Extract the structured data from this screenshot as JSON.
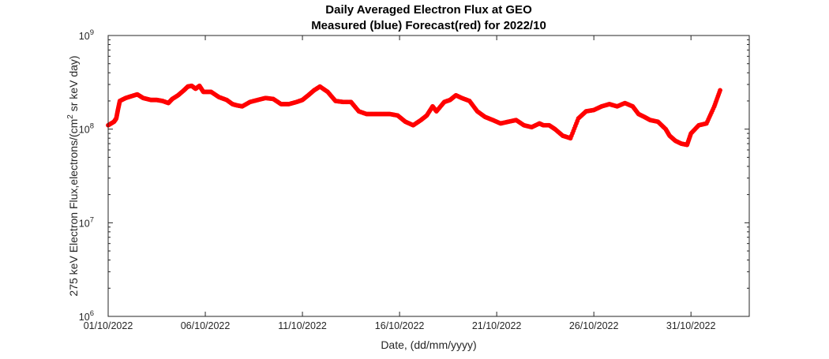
{
  "chart_data": {
    "type": "scatter",
    "title": "Daily Averaged Electron Flux at GEO",
    "subtitle": "Measured (blue) Forecast(red) for 2022/10",
    "xlabel": "Date, (dd/mm/yyyy)",
    "ylabel": {
      "prefix": "275 keV Electron Flux,electrons/(cm",
      "superscript": "2",
      "suffix": " sr keV day)"
    },
    "x_ticks": [
      "01/10/2022",
      "06/10/2022",
      "11/10/2022",
      "16/10/2022",
      "21/10/2022",
      "26/10/2022",
      "31/10/2022"
    ],
    "y_ticks": [
      {
        "base": "10",
        "exp": "6"
      },
      {
        "base": "10",
        "exp": "7"
      },
      {
        "base": "10",
        "exp": "8"
      },
      {
        "base": "10",
        "exp": "9"
      }
    ],
    "xlim": [
      "2022-10-01T00:00",
      "2022-11-03T00:00"
    ],
    "ylim": [
      1000000.0,
      1000000000.0
    ],
    "yscale": "log",
    "grid": false,
    "series": [
      {
        "color": "#ff0000",
        "x": [
          "2022-10-01T00:00",
          "2022-10-01T07:12",
          "2022-10-01T10:00",
          "2022-10-01T12:00",
          "2022-10-01T14:24",
          "2022-10-01T21:36",
          "2022-10-02T04:48",
          "2022-10-02T12:00",
          "2022-10-02T19:12",
          "2022-10-03T04:48",
          "2022-10-03T12:00",
          "2022-10-03T19:12",
          "2022-10-04T02:24",
          "2022-10-04T07:12",
          "2022-10-04T14:24",
          "2022-10-04T21:36",
          "2022-10-05T02:24",
          "2022-10-05T07:12",
          "2022-10-05T12:00",
          "2022-10-05T16:48",
          "2022-10-05T21:36",
          "2022-10-06T07:12",
          "2022-10-06T16:48",
          "2022-10-07T02:24",
          "2022-10-07T09:36",
          "2022-10-07T14:24",
          "2022-10-07T21:36",
          "2022-10-08T07:12",
          "2022-10-08T16:48",
          "2022-10-09T02:24",
          "2022-10-09T12:00",
          "2022-10-09T21:36",
          "2022-10-10T07:12",
          "2022-10-10T16:48",
          "2022-10-11T00:00",
          "2022-10-11T07:12",
          "2022-10-11T14:24",
          "2022-10-11T21:36",
          "2022-10-12T07:12",
          "2022-10-12T16:48",
          "2022-10-13T02:24",
          "2022-10-13T12:00",
          "2022-10-13T21:36",
          "2022-10-14T07:12",
          "2022-10-14T16:48",
          "2022-10-15T02:24",
          "2022-10-15T12:00",
          "2022-10-15T21:36",
          "2022-10-16T07:12",
          "2022-10-16T16:48",
          "2022-10-17T02:24",
          "2022-10-17T09:36",
          "2022-10-17T16:48",
          "2022-10-17T21:36",
          "2022-10-18T07:12",
          "2022-10-18T14:24",
          "2022-10-18T21:36",
          "2022-10-19T04:48",
          "2022-10-19T14:24",
          "2022-10-20T00:00",
          "2022-10-20T09:36",
          "2022-10-20T19:12",
          "2022-10-21T04:48",
          "2022-10-21T14:24",
          "2022-10-22T00:00",
          "2022-10-22T09:36",
          "2022-10-22T19:12",
          "2022-10-23T04:48",
          "2022-10-23T09:36",
          "2022-10-23T16:48",
          "2022-10-24T00:00",
          "2022-10-24T09:36",
          "2022-10-24T19:12",
          "2022-10-25T04:48",
          "2022-10-25T14:24",
          "2022-10-26T00:00",
          "2022-10-26T09:36",
          "2022-10-26T19:12",
          "2022-10-27T04:48",
          "2022-10-27T14:24",
          "2022-10-28T00:00",
          "2022-10-28T07:12",
          "2022-10-28T14:24",
          "2022-10-28T21:36",
          "2022-10-29T07:12",
          "2022-10-29T16:48",
          "2022-10-29T21:36",
          "2022-10-30T04:48",
          "2022-10-30T12:00",
          "2022-10-30T19:12",
          "2022-10-31T00:00",
          "2022-10-31T09:36",
          "2022-10-31T19:12",
          "2022-11-01T04:48",
          "2022-11-01T12:00"
        ],
        "y": [
          110000000.0,
          120000000.0,
          130000000.0,
          160000000.0,
          200000000.0,
          215000000.0,
          225000000.0,
          235000000.0,
          215000000.0,
          205000000.0,
          205000000.0,
          200000000.0,
          190000000.0,
          210000000.0,
          230000000.0,
          260000000.0,
          285000000.0,
          290000000.0,
          270000000.0,
          290000000.0,
          250000000.0,
          250000000.0,
          220000000.0,
          205000000.0,
          185000000.0,
          180000000.0,
          175000000.0,
          195000000.0,
          205000000.0,
          215000000.0,
          210000000.0,
          185000000.0,
          185000000.0,
          195000000.0,
          205000000.0,
          230000000.0,
          260000000.0,
          285000000.0,
          250000000.0,
          200000000.0,
          195000000.0,
          195000000.0,
          155000000.0,
          145000000.0,
          145000000.0,
          145000000.0,
          145000000.0,
          140000000.0,
          120000000.0,
          110000000.0,
          125000000.0,
          140000000.0,
          175000000.0,
          155000000.0,
          195000000.0,
          205000000.0,
          230000000.0,
          215000000.0,
          200000000.0,
          155000000.0,
          135000000.0,
          125000000.0,
          115000000.0,
          120000000.0,
          125000000.0,
          110000000.0,
          105000000.0,
          115000000.0,
          110000000.0,
          110000000.0,
          100000000.0,
          85000000.0,
          80000000.0,
          130000000.0,
          155000000.0,
          160000000.0,
          175000000.0,
          185000000.0,
          175000000.0,
          190000000.0,
          175000000.0,
          145000000.0,
          135000000.0,
          125000000.0,
          120000000.0,
          100000000.0,
          85000000.0,
          75000000.0,
          70000000.0,
          68000000.0,
          90000000.0,
          110000000.0,
          115000000.0,
          175000000.0,
          260000000.0
        ]
      }
    ]
  }
}
